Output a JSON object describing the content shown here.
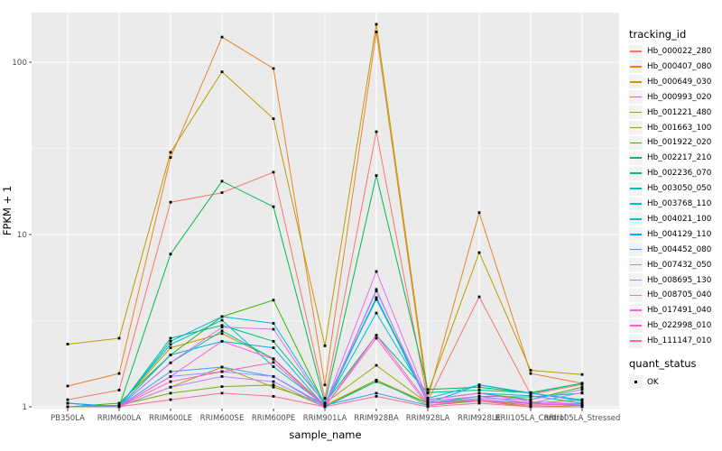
{
  "figure": {
    "y_axis": {
      "title": "FPKM + 1"
    },
    "x_axis": {
      "title": "sample_name"
    },
    "legend": {
      "tracking_title": "tracking_id",
      "quant_title": "quant_status",
      "quant_items": [
        {
          "label": "OK",
          "marker": "black-square"
        }
      ]
    }
  },
  "colors": {
    "background": "#FFFFFF",
    "panel_bg": "#EBEBEB",
    "grid": "#FFFFFF",
    "axis_text": "#4D4D4D",
    "tick_mark": "#333333",
    "point": "#000000",
    "legend_key_bg": "#F2F2F2"
  },
  "chart_data": {
    "type": "line",
    "title": "",
    "xlabel": "sample_name",
    "ylabel": "FPKM + 1",
    "x_scale": "categorical",
    "y_scale": "log10",
    "ylim": [
      1,
      195
    ],
    "y_ticks": [
      1,
      10,
      100
    ],
    "y_tick_labels": [
      "1",
      "10",
      "100"
    ],
    "y_minor_ticks": [
      3.1623,
      31.623
    ],
    "grid": "white-on-gray",
    "legend_position": "right",
    "point_marker": "black-square",
    "categories": [
      "PB350LA",
      "RRIM600LA",
      "RRIM600LE",
      "RRIM600SE",
      "RRIM600PE",
      "RRIM901LA",
      "RRIM928BA",
      "RRIM928LA",
      "RRIM928LE",
      "RRII105LA_Control",
      "RRII105LA_Stressed"
    ],
    "series": [
      {
        "name": "Hb_000022_280",
        "color": "#F8766D",
        "values": [
          1.1,
          1.25,
          15.4,
          17.5,
          23,
          1.12,
          39.5,
          1.08,
          4.35,
          1.18,
          1.35
        ]
      },
      {
        "name": "Hb_000407_080",
        "color": "#E88526",
        "values": [
          1.32,
          1.56,
          28,
          140,
          92,
          1.34,
          150,
          1.12,
          13.4,
          1.56,
          1.37
        ]
      },
      {
        "name": "Hb_000649_030",
        "color": "#D89000",
        "values": [
          1.0,
          1.02,
          2.2,
          2.66,
          1.9,
          1.02,
          1.43,
          1.05,
          1.15,
          1.05,
          1.1
        ]
      },
      {
        "name": "Hb_000993_020",
        "color": "#BB9D00",
        "values": [
          2.31,
          2.5,
          30,
          88,
          47,
          2.26,
          166,
          1.2,
          7.85,
          1.63,
          1.54
        ]
      },
      {
        "name": "Hb_001221_480",
        "color": "#A3A500",
        "values": [
          1.05,
          1.0,
          1.3,
          1.7,
          1.3,
          1.05,
          1.74,
          1.05,
          1.1,
          1.02,
          1.05
        ]
      },
      {
        "name": "Hb_001663_100",
        "color": "#7CAE00",
        "values": [
          1.0,
          1.02,
          1.2,
          1.31,
          1.34,
          1.0,
          1.43,
          1.02,
          1.08,
          1.0,
          1.02
        ]
      },
      {
        "name": "Hb_001922_020",
        "color": "#39B600",
        "values": [
          1.0,
          1.05,
          2.0,
          3.34,
          4.16,
          1.02,
          4.3,
          1.1,
          1.2,
          1.1,
          1.3
        ]
      },
      {
        "name": "Hb_002217_210",
        "color": "#00BB4E",
        "values": [
          1.0,
          1.0,
          7.7,
          20.4,
          14.5,
          1.05,
          22,
          1.26,
          1.3,
          1.2,
          1.37
        ]
      },
      {
        "name": "Hb_002236_070",
        "color": "#00BF7D",
        "values": [
          1.05,
          1.0,
          2.5,
          2.97,
          2.4,
          1.05,
          2.6,
          1.21,
          1.25,
          1.21,
          1.37
        ]
      },
      {
        "name": "Hb_003050_050",
        "color": "#00C1A3",
        "values": [
          1.0,
          1.0,
          1.8,
          2.76,
          1.9,
          1.0,
          1.4,
          1.05,
          1.15,
          1.14,
          1.2
        ]
      },
      {
        "name": "Hb_003768_110",
        "color": "#00BFC4",
        "values": [
          1.0,
          1.02,
          2.3,
          3.18,
          1.71,
          1.02,
          3.5,
          1.12,
          1.34,
          1.2,
          1.1
        ]
      },
      {
        "name": "Hb_004021_100",
        "color": "#00BAE0",
        "values": [
          1.0,
          1.0,
          2.4,
          3.34,
          3.05,
          1.05,
          4.2,
          1.1,
          1.2,
          1.16,
          1.05
        ]
      },
      {
        "name": "Hb_004129_110",
        "color": "#00B0F6",
        "values": [
          1.05,
          1.0,
          2.0,
          2.4,
          2.2,
          1.0,
          4.3,
          1.05,
          1.34,
          1.2,
          1.08
        ]
      },
      {
        "name": "Hb_004452_080",
        "color": "#35A2FF",
        "values": [
          1.0,
          1.0,
          1.6,
          1.7,
          1.5,
          1.02,
          1.2,
          1.02,
          1.1,
          1.05,
          1.02
        ]
      },
      {
        "name": "Hb_007432_050",
        "color": "#9590FF",
        "values": [
          1.0,
          1.0,
          1.5,
          1.6,
          1.5,
          1.0,
          4.8,
          1.05,
          1.12,
          1.1,
          1.26
        ]
      },
      {
        "name": "Hb_008695_130",
        "color": "#C77CFF",
        "values": [
          1.0,
          1.0,
          1.3,
          1.5,
          1.4,
          1.0,
          4.7,
          1.08,
          1.15,
          1.05,
          1.21
        ]
      },
      {
        "name": "Hb_008705_040",
        "color": "#E76BF3",
        "values": [
          1.0,
          1.0,
          1.8,
          2.9,
          2.82,
          1.02,
          6.1,
          1.1,
          1.2,
          1.07,
          1.04
        ]
      },
      {
        "name": "Hb_017491_040",
        "color": "#FA62DB",
        "values": [
          1.0,
          1.0,
          1.5,
          2.4,
          1.89,
          1.0,
          2.5,
          1.02,
          1.1,
          1.04,
          1.04
        ]
      },
      {
        "name": "Hb_022998_010",
        "color": "#FF62BC",
        "values": [
          1.0,
          1.0,
          1.4,
          1.6,
          1.81,
          1.0,
          2.6,
          1.05,
          1.08,
          1.02,
          1.04
        ]
      },
      {
        "name": "Hb_111147_010",
        "color": "#FF6A98",
        "values": [
          1.0,
          1.0,
          1.1,
          1.2,
          1.15,
          1.0,
          1.15,
          1.0,
          1.05,
          1.0,
          1.0
        ]
      }
    ],
    "quant_status": {
      "title": "quant_status",
      "values": [
        "OK"
      ]
    }
  }
}
